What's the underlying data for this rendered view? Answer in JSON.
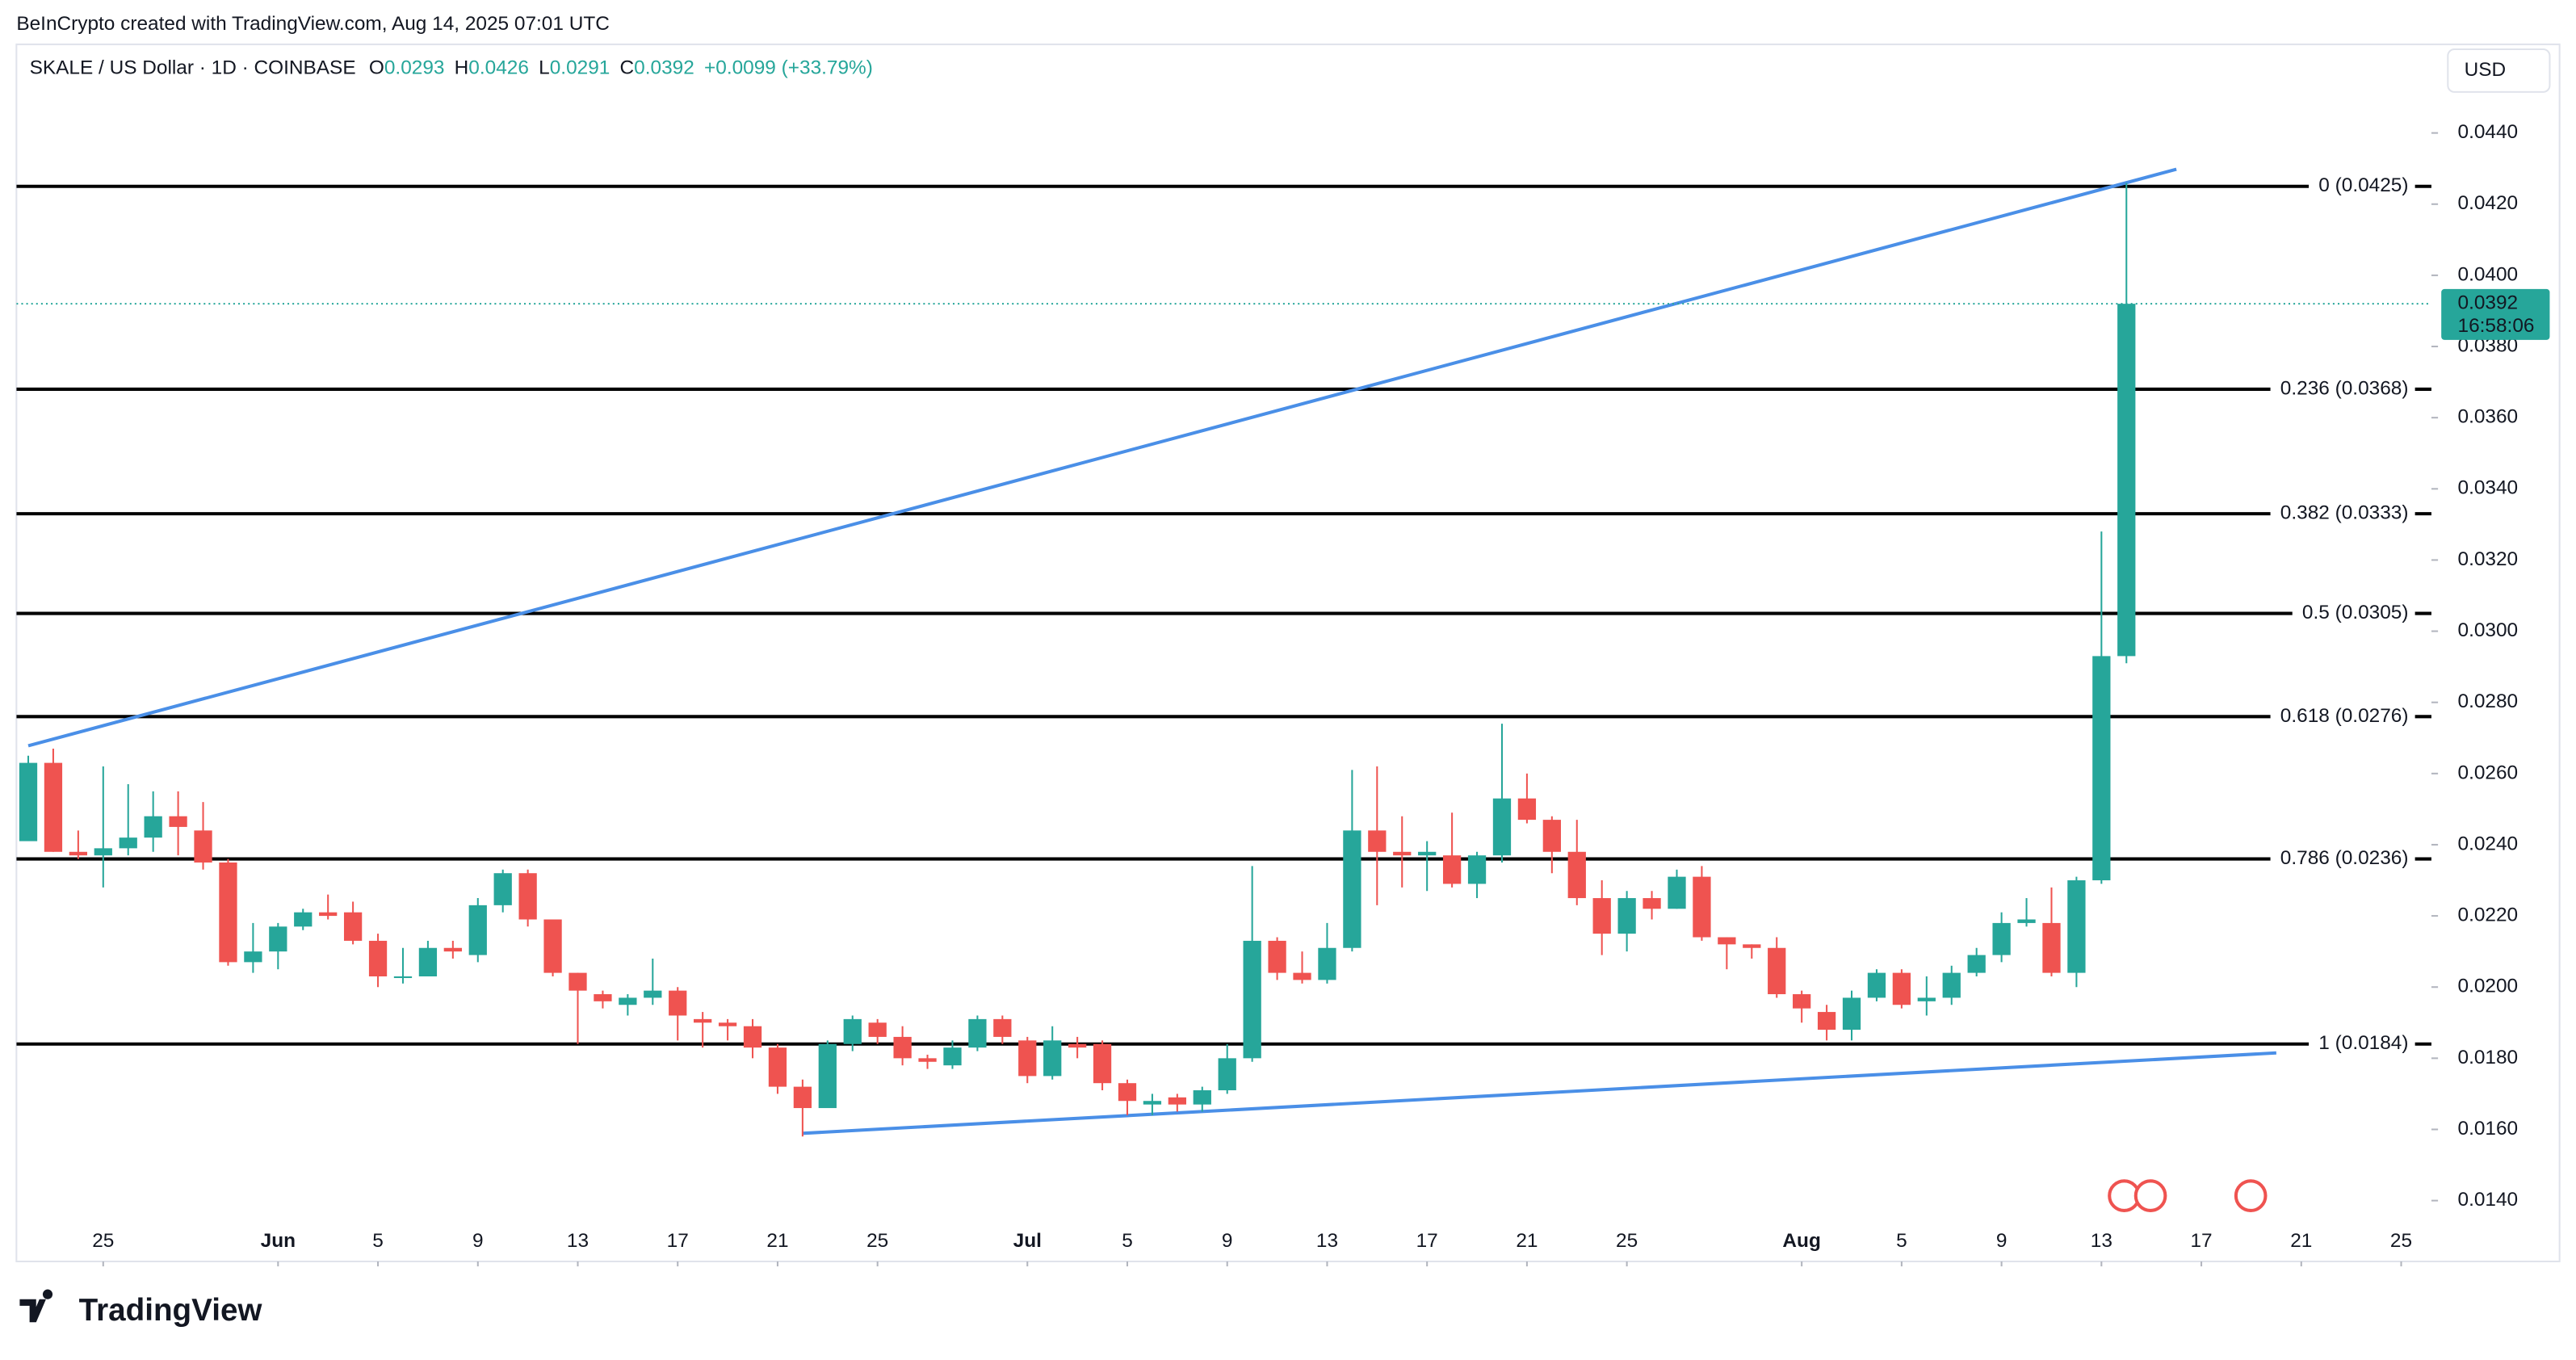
{
  "header": {
    "credit": "BeInCrypto created with TradingView.com, Aug 14, 2025 07:01 UTC",
    "symbol": "SKALE / US Dollar · 1D · COINBASE",
    "o_key": "O",
    "h_key": "H",
    "l_key": "L",
    "c_key": "C",
    "change": "+0.0099 (+33.79%)",
    "currency": "USD"
  },
  "footer": {
    "brand": "TradingView"
  },
  "chart_data": {
    "type": "candlestick",
    "up_color": "#26a69a",
    "down_color": "#ef5350",
    "x": [
      "2025-05-22",
      "2025-05-23",
      "2025-05-24",
      "2025-05-25",
      "2025-05-26",
      "2025-05-27",
      "2025-05-28",
      "2025-05-29",
      "2025-05-30",
      "2025-05-31",
      "2025-06-01",
      "2025-06-02",
      "2025-06-03",
      "2025-06-04",
      "2025-06-05",
      "2025-06-06",
      "2025-06-07",
      "2025-06-08",
      "2025-06-09",
      "2025-06-10",
      "2025-06-11",
      "2025-06-12",
      "2025-06-13",
      "2025-06-14",
      "2025-06-15",
      "2025-06-16",
      "2025-06-17",
      "2025-06-18",
      "2025-06-19",
      "2025-06-20",
      "2025-06-21",
      "2025-06-22",
      "2025-06-23",
      "2025-06-24",
      "2025-06-25",
      "2025-06-26",
      "2025-06-27",
      "2025-06-28",
      "2025-06-29",
      "2025-06-30",
      "2025-07-01",
      "2025-07-02",
      "2025-07-03",
      "2025-07-04",
      "2025-07-05",
      "2025-07-06",
      "2025-07-07",
      "2025-07-08",
      "2025-07-09",
      "2025-07-10",
      "2025-07-11",
      "2025-07-12",
      "2025-07-13",
      "2025-07-14",
      "2025-07-15",
      "2025-07-16",
      "2025-07-17",
      "2025-07-18",
      "2025-07-19",
      "2025-07-20",
      "2025-07-21",
      "2025-07-22",
      "2025-07-23",
      "2025-07-24",
      "2025-07-25",
      "2025-07-26",
      "2025-07-27",
      "2025-07-28",
      "2025-07-29",
      "2025-07-30",
      "2025-07-31",
      "2025-08-01",
      "2025-08-02",
      "2025-08-03",
      "2025-08-04",
      "2025-08-05",
      "2025-08-06",
      "2025-08-07",
      "2025-08-08",
      "2025-08-09",
      "2025-08-10",
      "2025-08-11",
      "2025-08-12",
      "2025-08-13",
      "2025-08-14"
    ],
    "open": [
      0.0241,
      0.0263,
      0.0238,
      0.0237,
      0.0239,
      0.0242,
      0.0248,
      0.0244,
      0.0235,
      0.0207,
      0.021,
      0.0217,
      0.0221,
      0.0221,
      0.0213,
      0.0203,
      0.0203,
      0.0211,
      0.0209,
      0.0223,
      0.0232,
      0.0219,
      0.0204,
      0.0198,
      0.0195,
      0.0197,
      0.0199,
      0.0191,
      0.019,
      0.0189,
      0.0183,
      0.0172,
      0.0166,
      0.0184,
      0.019,
      0.0186,
      0.018,
      0.0178,
      0.0183,
      0.0191,
      0.0185,
      0.0175,
      0.0184,
      0.0184,
      0.0173,
      0.0167,
      0.0169,
      0.0167,
      0.0171,
      0.018,
      0.0213,
      0.0204,
      0.0202,
      0.0211,
      0.0244,
      0.0238,
      0.0237,
      0.0237,
      0.0229,
      0.0237,
      0.0253,
      0.0247,
      0.0238,
      0.0225,
      0.0215,
      0.0225,
      0.0222,
      0.0231,
      0.0214,
      0.0212,
      0.0211,
      0.0198,
      0.0193,
      0.0188,
      0.0197,
      0.0204,
      0.0196,
      0.0197,
      0.0204,
      0.0209,
      0.0218,
      0.0218,
      0.0204,
      0.023,
      0.0293
    ],
    "high": [
      0.0265,
      0.0267,
      0.0244,
      0.0262,
      0.0257,
      0.0255,
      0.0255,
      0.0252,
      0.0236,
      0.0218,
      0.0218,
      0.0222,
      0.0226,
      0.0224,
      0.0215,
      0.0211,
      0.0213,
      0.0213,
      0.0225,
      0.0233,
      0.0233,
      0.0219,
      0.0204,
      0.0199,
      0.0198,
      0.0208,
      0.02,
      0.0193,
      0.0191,
      0.0191,
      0.0184,
      0.0174,
      0.0185,
      0.0192,
      0.0191,
      0.0189,
      0.0181,
      0.0185,
      0.0192,
      0.0192,
      0.0186,
      0.0189,
      0.0186,
      0.0185,
      0.0174,
      0.017,
      0.017,
      0.0172,
      0.0184,
      0.0234,
      0.0214,
      0.021,
      0.0218,
      0.0261,
      0.0262,
      0.0248,
      0.0241,
      0.0249,
      0.0238,
      0.0274,
      0.026,
      0.0248,
      0.0247,
      0.023,
      0.0227,
      0.0227,
      0.0233,
      0.0234,
      0.0214,
      0.0212,
      0.0214,
      0.0199,
      0.0195,
      0.0199,
      0.0205,
      0.0205,
      0.0203,
      0.0206,
      0.0211,
      0.0221,
      0.0225,
      0.0228,
      0.0231,
      0.0328,
      0.0426
    ],
    "low": [
      0.0241,
      0.0238,
      0.0236,
      0.0228,
      0.0237,
      0.0238,
      0.0237,
      0.0233,
      0.0206,
      0.0204,
      0.0205,
      0.0216,
      0.0219,
      0.0212,
      0.02,
      0.0201,
      0.0203,
      0.0208,
      0.0207,
      0.0221,
      0.0217,
      0.0203,
      0.0184,
      0.0194,
      0.0192,
      0.0195,
      0.0185,
      0.0183,
      0.0185,
      0.018,
      0.017,
      0.0158,
      0.0166,
      0.0182,
      0.0184,
      0.0178,
      0.0177,
      0.0177,
      0.0182,
      0.0184,
      0.0173,
      0.0174,
      0.018,
      0.0171,
      0.0164,
      0.0164,
      0.0165,
      0.0165,
      0.017,
      0.0179,
      0.0202,
      0.0201,
      0.0201,
      0.021,
      0.0223,
      0.0228,
      0.0227,
      0.0228,
      0.0225,
      0.0235,
      0.0246,
      0.0232,
      0.0223,
      0.0209,
      0.021,
      0.0219,
      0.0222,
      0.0213,
      0.0205,
      0.0208,
      0.0197,
      0.019,
      0.0185,
      0.0185,
      0.0196,
      0.0194,
      0.0192,
      0.0195,
      0.0203,
      0.0207,
      0.0217,
      0.0203,
      0.02,
      0.0229,
      0.0291
    ],
    "close": [
      0.0263,
      0.0238,
      0.0237,
      0.0239,
      0.0242,
      0.0248,
      0.0245,
      0.0235,
      0.0207,
      0.021,
      0.0217,
      0.0221,
      0.022,
      0.0213,
      0.0203,
      0.0203,
      0.0211,
      0.021,
      0.0223,
      0.0232,
      0.0219,
      0.0204,
      0.0199,
      0.0196,
      0.0197,
      0.0199,
      0.0192,
      0.019,
      0.0189,
      0.0183,
      0.0172,
      0.0166,
      0.0184,
      0.0191,
      0.0186,
      0.018,
      0.0179,
      0.0183,
      0.0191,
      0.0186,
      0.0175,
      0.0185,
      0.0183,
      0.0173,
      0.0168,
      0.0168,
      0.0167,
      0.0171,
      0.018,
      0.0213,
      0.0204,
      0.0202,
      0.0211,
      0.0244,
      0.0238,
      0.0237,
      0.0238,
      0.0229,
      0.0237,
      0.0253,
      0.0247,
      0.0238,
      0.0225,
      0.0215,
      0.0225,
      0.0222,
      0.0231,
      0.0214,
      0.0212,
      0.0211,
      0.0198,
      0.0194,
      0.0188,
      0.0197,
      0.0204,
      0.0195,
      0.0197,
      0.0204,
      0.0209,
      0.0218,
      0.0219,
      0.0204,
      0.023,
      0.0293,
      0.0392
    ],
    "countdown": "16:58:06",
    "xlim": [
      "2025-05-21",
      "2025-08-27"
    ],
    "xticks": [
      {
        "value": "2025-05-25",
        "label": "25"
      },
      {
        "value": "2025-06-01",
        "label": "Jun"
      },
      {
        "value": "2025-06-05",
        "label": "5"
      },
      {
        "value": "2025-06-09",
        "label": "9"
      },
      {
        "value": "2025-06-13",
        "label": "13"
      },
      {
        "value": "2025-06-17",
        "label": "17"
      },
      {
        "value": "2025-06-21",
        "label": "21"
      },
      {
        "value": "2025-06-25",
        "label": "25"
      },
      {
        "value": "2025-07-01",
        "label": "Jul"
      },
      {
        "value": "2025-07-05",
        "label": "5"
      },
      {
        "value": "2025-07-09",
        "label": "9"
      },
      {
        "value": "2025-07-13",
        "label": "13"
      },
      {
        "value": "2025-07-17",
        "label": "17"
      },
      {
        "value": "2025-07-21",
        "label": "21"
      },
      {
        "value": "2025-07-25",
        "label": "25"
      },
      {
        "value": "2025-08-01",
        "label": "Aug"
      },
      {
        "value": "2025-08-05",
        "label": "5"
      },
      {
        "value": "2025-08-09",
        "label": "9"
      },
      {
        "value": "2025-08-13",
        "label": "13"
      },
      {
        "value": "2025-08-17",
        "label": "17"
      },
      {
        "value": "2025-08-21",
        "label": "21"
      },
      {
        "value": "2025-08-25",
        "label": "25"
      }
    ],
    "ylim": [
      0.01229,
      0.04649
    ],
    "yticks": [
      {
        "value": 0.014,
        "label": "0.0140"
      },
      {
        "value": 0.016,
        "label": "0.0160"
      },
      {
        "value": 0.018,
        "label": "0.0180"
      },
      {
        "value": 0.02,
        "label": "0.0200"
      },
      {
        "value": 0.022,
        "label": "0.0220"
      },
      {
        "value": 0.024,
        "label": "0.0240"
      },
      {
        "value": 0.026,
        "label": "0.0260"
      },
      {
        "value": 0.028,
        "label": "0.0280"
      },
      {
        "value": 0.03,
        "label": "0.0300"
      },
      {
        "value": 0.032,
        "label": "0.0320"
      },
      {
        "value": 0.034,
        "label": "0.0340"
      },
      {
        "value": 0.036,
        "label": "0.0360"
      },
      {
        "value": 0.038,
        "label": "0.0380"
      },
      {
        "value": 0.04,
        "label": "0.0400"
      },
      {
        "value": 0.042,
        "label": "0.0420"
      },
      {
        "value": 0.044,
        "label": "0.0440"
      }
    ],
    "fib_levels": [
      {
        "value": 0.0425,
        "label": "0 (0.0425)"
      },
      {
        "value": 0.0368,
        "label": "0.236 (0.0368)"
      },
      {
        "value": 0.0333,
        "label": "0.382 (0.0333)"
      },
      {
        "value": 0.0305,
        "label": "0.5 (0.0305)"
      },
      {
        "value": 0.0276,
        "label": "0.618 (0.0276)"
      },
      {
        "value": 0.0236,
        "label": "0.786 (0.0236)"
      },
      {
        "value": 0.0184,
        "label": "1 (0.0184)"
      }
    ],
    "trendlines": [
      {
        "color": "#4a8fe7",
        "x": [
          "2025-05-22",
          "2025-08-16"
        ],
        "y": [
          0.02678,
          0.04298
        ]
      },
      {
        "color": "#4a8fe7",
        "x": [
          "2025-06-22",
          "2025-08-20"
        ],
        "y": [
          0.01589,
          0.01815
        ]
      }
    ]
  }
}
